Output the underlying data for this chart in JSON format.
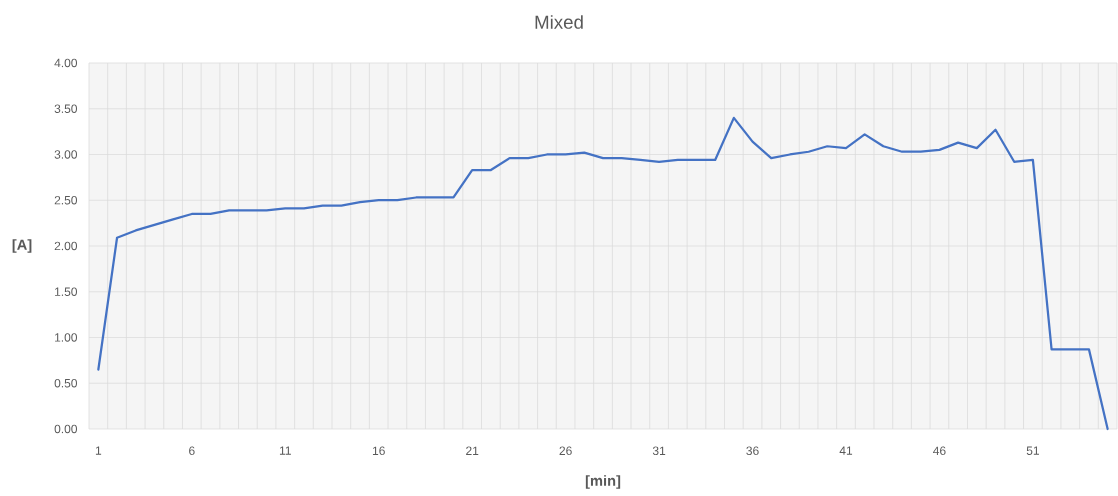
{
  "chart_data": {
    "type": "line",
    "title": "Mixed",
    "xlabel": "[min]",
    "ylabel": "[A]",
    "categories": [
      "1",
      null,
      null,
      null,
      null,
      "6",
      null,
      null,
      null,
      null,
      "11",
      null,
      null,
      null,
      null,
      "16",
      null,
      null,
      null,
      null,
      "21",
      null,
      null,
      null,
      null,
      "26",
      null,
      null,
      null,
      null,
      "31",
      null,
      null,
      null,
      null,
      "36",
      null,
      null,
      null,
      null,
      "41",
      null,
      null,
      null,
      null,
      "46",
      null,
      null,
      null,
      null,
      "51",
      null,
      null,
      null,
      null
    ],
    "values": [
      0.65,
      2.09,
      2.17,
      2.23,
      2.29,
      2.35,
      2.35,
      2.39,
      2.39,
      2.39,
      2.41,
      2.41,
      2.44,
      2.44,
      2.48,
      2.5,
      2.5,
      2.53,
      2.53,
      2.53,
      2.83,
      2.83,
      2.96,
      2.96,
      3.0,
      3.0,
      3.02,
      2.96,
      2.96,
      2.94,
      2.92,
      2.94,
      2.94,
      2.94,
      3.4,
      3.14,
      2.96,
      3.0,
      3.03,
      3.09,
      3.07,
      3.22,
      3.09,
      3.03,
      3.03,
      3.05,
      3.13,
      3.07,
      3.27,
      2.92,
      2.94,
      0.87,
      0.87,
      0.87,
      0.0
    ],
    "color": "#4472c4",
    "ylim": [
      0,
      4
    ],
    "yticks": [
      {
        "value": 0,
        "label": "0.00"
      },
      {
        "value": 0.5,
        "label": "0.50"
      },
      {
        "value": 1,
        "label": "1.00"
      },
      {
        "value": 1.5,
        "label": "1.50"
      },
      {
        "value": 2,
        "label": "2.00"
      },
      {
        "value": 2.5,
        "label": "2.50"
      },
      {
        "value": 3,
        "label": "3.00"
      },
      {
        "value": 3.5,
        "label": "3.50"
      },
      {
        "value": 4,
        "label": "4.00"
      }
    ],
    "grid": true
  }
}
